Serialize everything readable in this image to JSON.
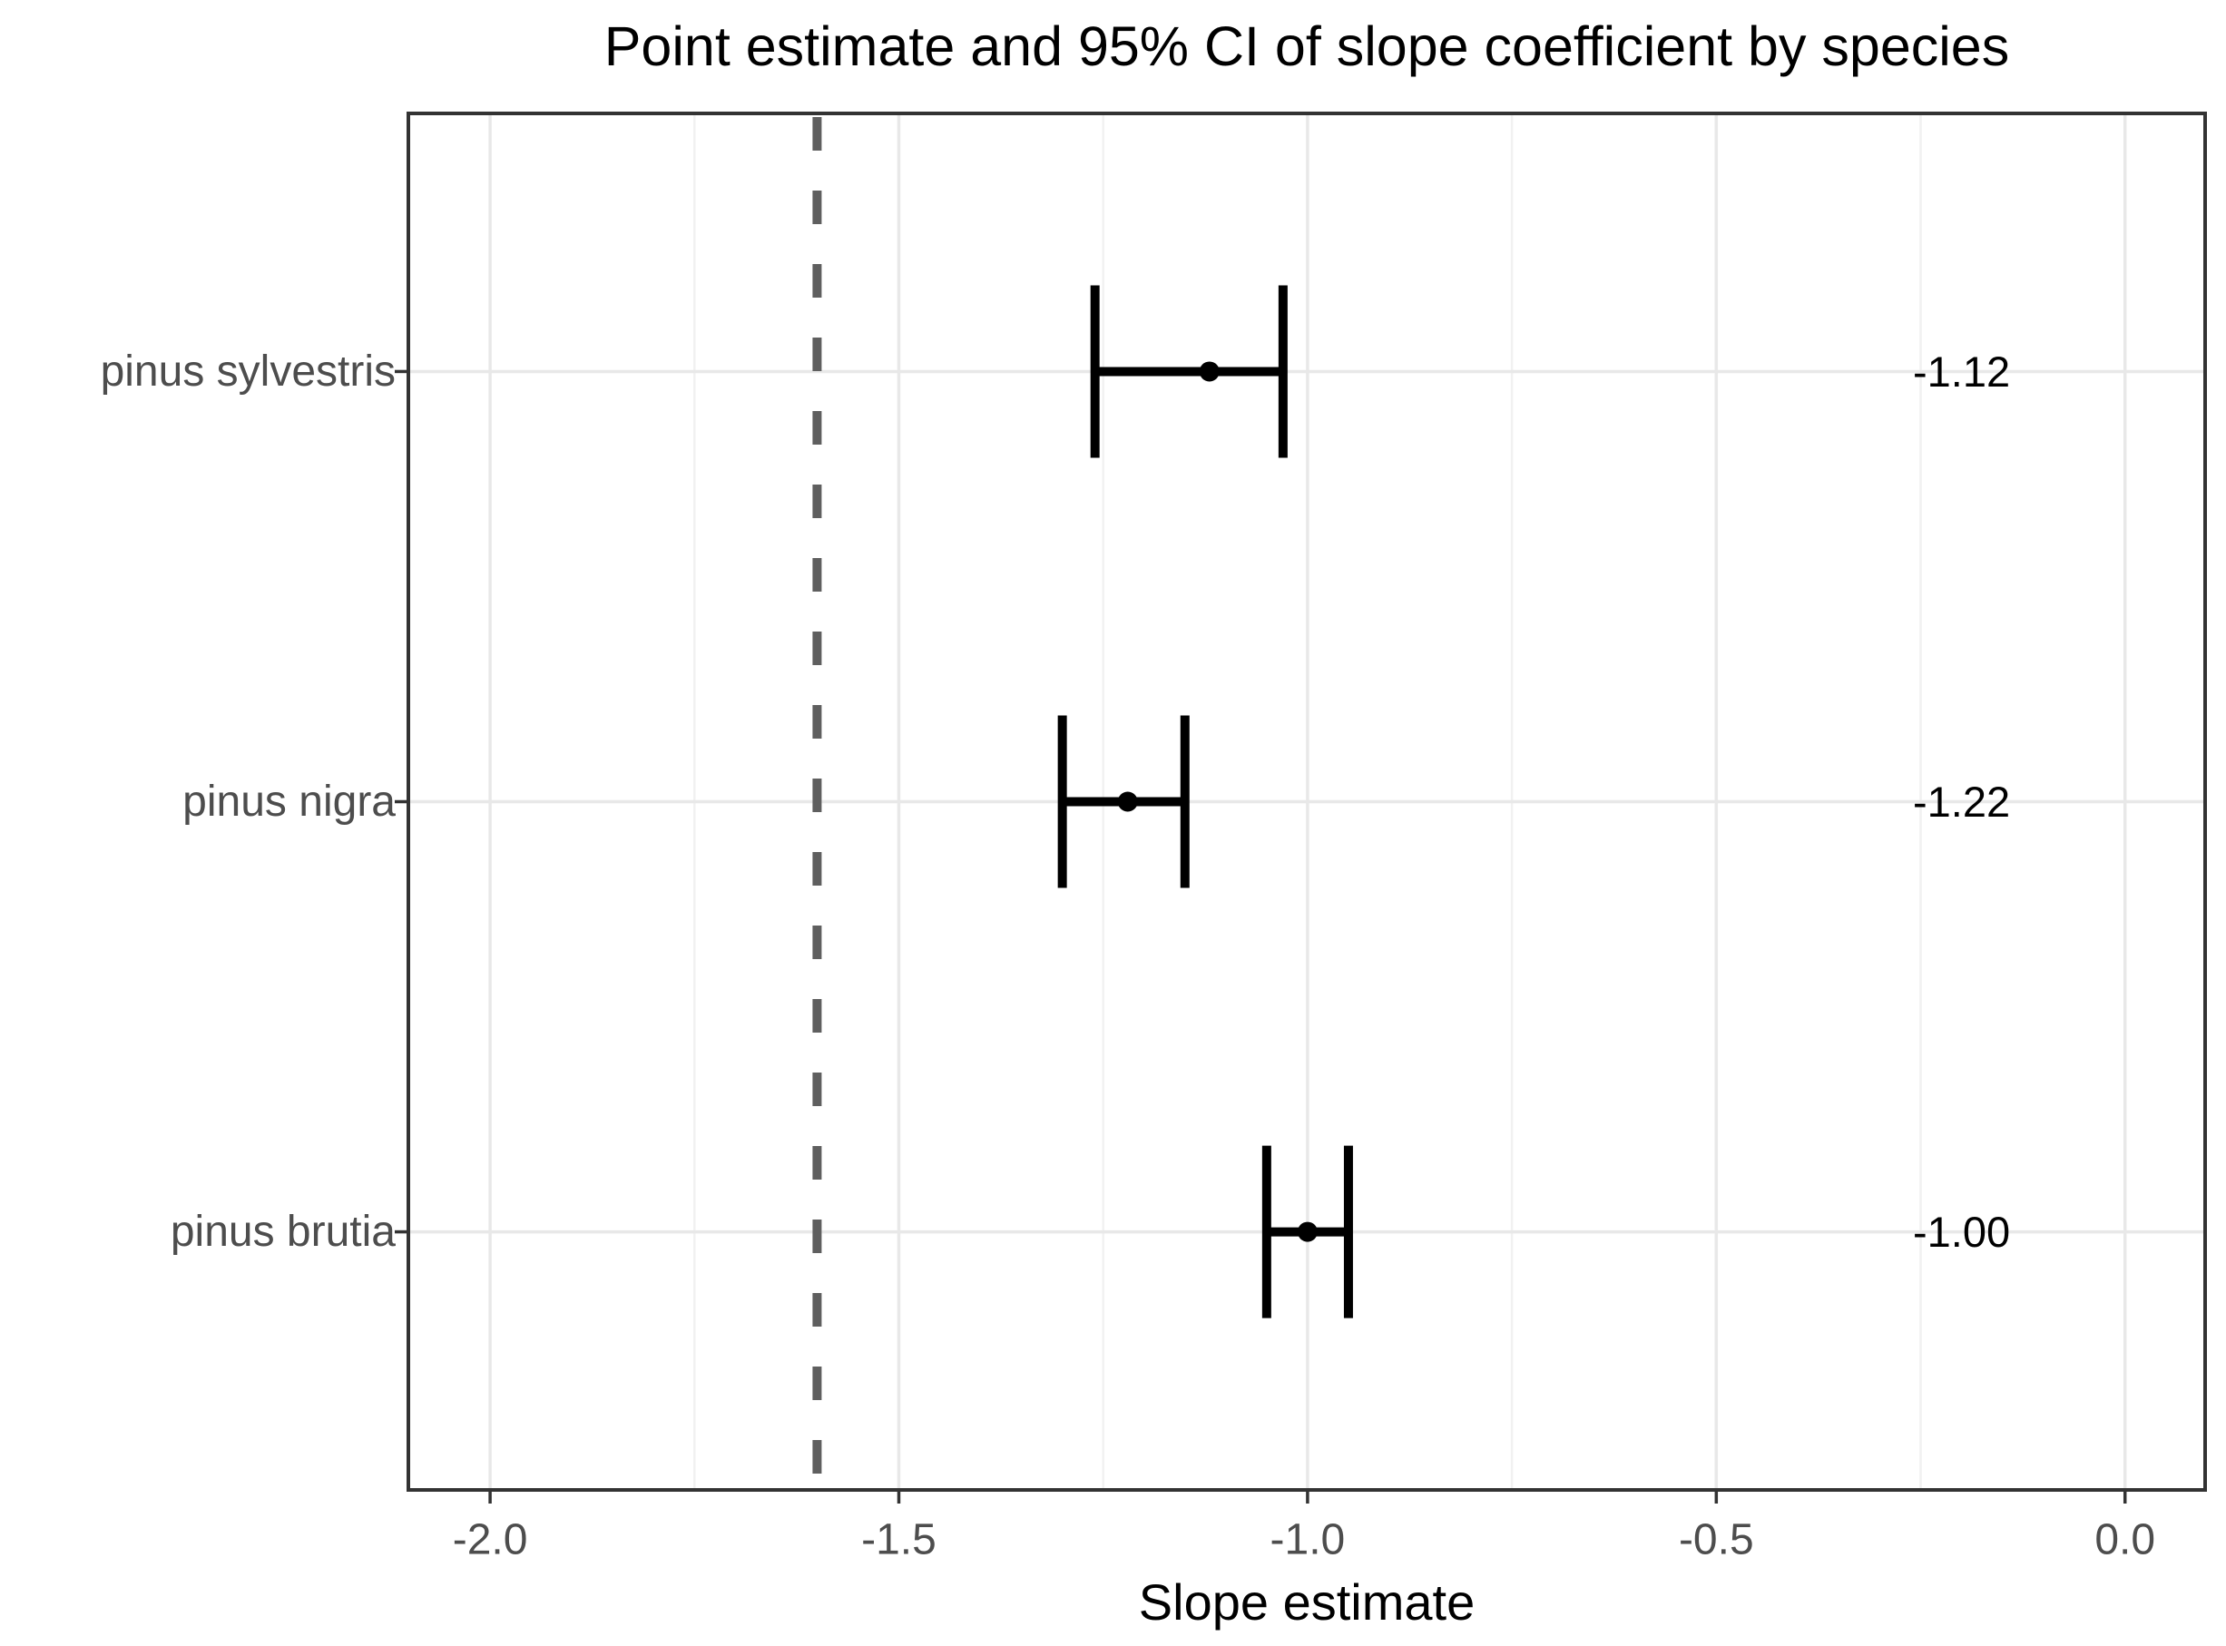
{
  "chart_data": {
    "type": "scatter",
    "title": "Point estimate and 95% CI of slope coefficient by species",
    "xlabel": "Slope estimate",
    "ylabel": "",
    "categories": [
      "pinus sylvestris",
      "pinus nigra",
      "pinus brutia"
    ],
    "points": [
      {
        "species": "pinus sylvestris",
        "estimate": -1.12,
        "ci_low": -1.26,
        "ci_high": -1.03,
        "label": "-1.12"
      },
      {
        "species": "pinus nigra",
        "estimate": -1.22,
        "ci_low": -1.3,
        "ci_high": -1.15,
        "label": "-1.22"
      },
      {
        "species": "pinus brutia",
        "estimate": -1.0,
        "ci_low": -1.05,
        "ci_high": -0.95,
        "label": "-1.00"
      }
    ],
    "value_label_x": -0.2,
    "xlim": [
      -2.1,
      0.098
    ],
    "x_ticks": [
      {
        "value": -2.0,
        "label": "-2.0"
      },
      {
        "value": -1.5,
        "label": "-1.5"
      },
      {
        "value": -1.0,
        "label": "-1.0"
      },
      {
        "value": -0.5,
        "label": "-0.5"
      },
      {
        "value": 0.0,
        "label": "0.0"
      }
    ],
    "x_minor_ticks": [
      -1.75,
      -1.25,
      -0.75,
      -0.25
    ],
    "reference_line": {
      "x": -1.6,
      "style": "dashed"
    },
    "legend": "none",
    "grid": "vertical major+minor, horizontal major at category rows",
    "colors": {
      "point": "#000000",
      "error_bar": "#000000",
      "reference_line": "#5f5f5f",
      "grid_major": "#e8e8e8",
      "grid_minor": "#f1f1f1",
      "panel_border": "#333333",
      "tick_mark": "#333333",
      "axis_text": "#4d4d4d",
      "title_text": "#000000",
      "value_label": "#000000",
      "background": "#ffffff"
    }
  }
}
